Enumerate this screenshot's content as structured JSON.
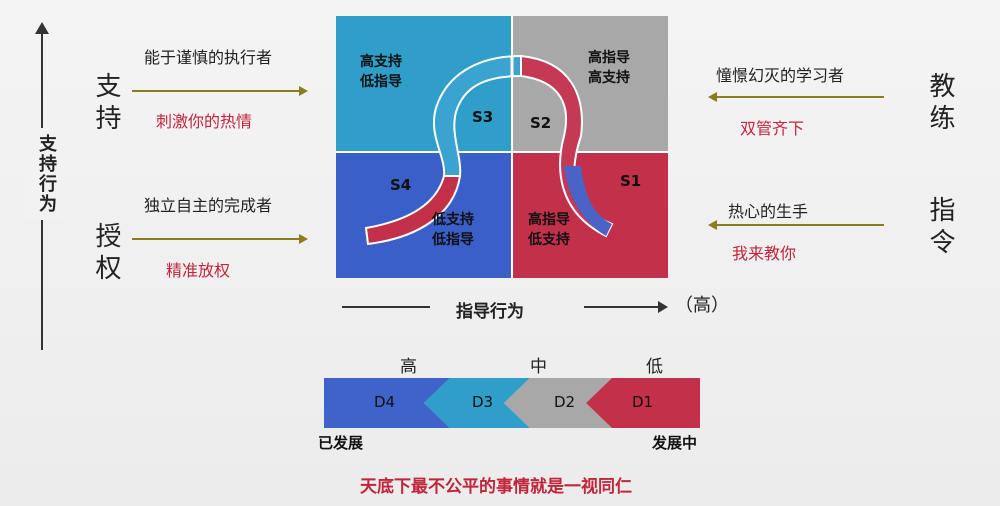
{
  "vertical_axis": {
    "label": "支持行为"
  },
  "left": {
    "support": {
      "char": "支持",
      "role": "能于谨慎的执行者",
      "tip": "刺激你的热情"
    },
    "delegate": {
      "char": "授权",
      "role": "独立自主的完成者",
      "tip": "精准放权"
    }
  },
  "right": {
    "coach": {
      "char": "教练",
      "role": "憧憬幻灭的学习者",
      "tip": "双管齐下"
    },
    "direct": {
      "char": "指令",
      "role": "热心的生手",
      "tip": "我来教你"
    }
  },
  "quadrants": {
    "s3": {
      "line1": "高支持",
      "line2": "低指导",
      "label": "S3"
    },
    "s2": {
      "line1": "高指导",
      "line2": "高支持",
      "label": "S2"
    },
    "s4": {
      "line1": "低支持",
      "line2": "低指导",
      "label": "S4"
    },
    "s1": {
      "line1": "高指导",
      "line2": "低支持",
      "label": "S1"
    }
  },
  "colors": {
    "s3": "#2f9ec9",
    "s2": "#a8a8a8",
    "s4": "#3a5fc8",
    "s1": "#c3304a"
  },
  "x_axis": {
    "label": "指导行为",
    "high": "（高）"
  },
  "development": {
    "levels": [
      "高",
      "中",
      "低"
    ],
    "stages": [
      "D4",
      "D3",
      "D2",
      "D1"
    ],
    "left_end": "已发展",
    "right_end": "发展中"
  },
  "footer": "天底下最不公平的事情就是一视同仁"
}
